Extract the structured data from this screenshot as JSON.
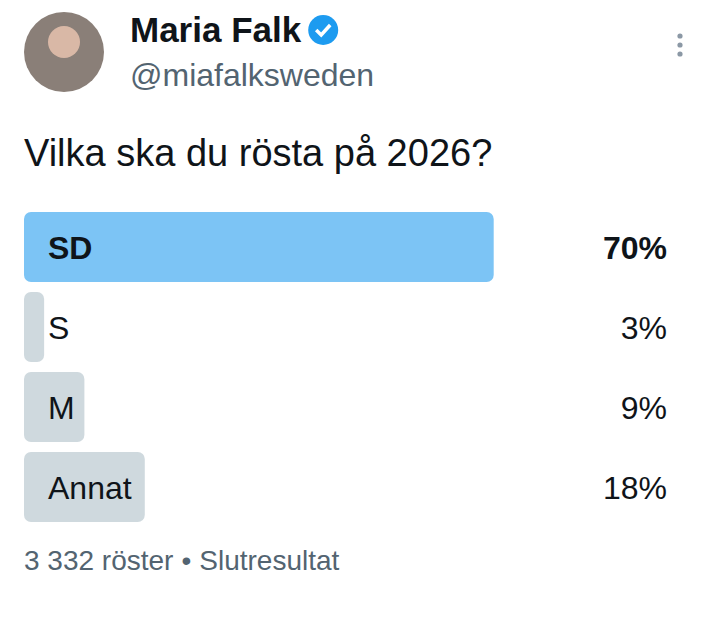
{
  "post": {
    "author": "Maria Falk",
    "handle": "@miafalksweden"
  },
  "chart_data": {
    "type": "bar",
    "title": "Vilka ska du rösta på 2026?",
    "orientation": "horizontal",
    "categories": [
      "SD",
      "S",
      "M",
      "Annat"
    ],
    "values": [
      70,
      3,
      9,
      18
    ],
    "value_labels": [
      "70%",
      "3%",
      "9%",
      "18%"
    ],
    "data_labels": true,
    "colors": [
      "#7cc4f5",
      "#cfd9de",
      "#cfd9de",
      "#cfd9de"
    ],
    "xlim": [
      0,
      100
    ],
    "tick_labels": false
  },
  "footer": {
    "votes": "3 332 röster",
    "separator": "•",
    "status": "Slutresultat"
  }
}
